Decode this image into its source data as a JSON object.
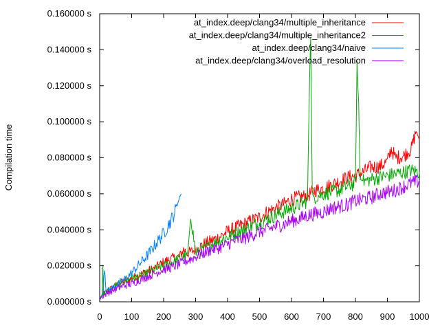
{
  "chart_data": {
    "type": "line",
    "title": "",
    "xlabel": "",
    "ylabel": "Compilation time",
    "xlim": [
      0,
      1000
    ],
    "ylim": [
      0,
      0.16
    ],
    "grid": false,
    "legend_position": "top-right",
    "x_ticks": [
      {
        "value": 0,
        "label": "0"
      },
      {
        "value": 100,
        "label": "100"
      },
      {
        "value": 200,
        "label": "200"
      },
      {
        "value": 300,
        "label": "300"
      },
      {
        "value": 400,
        "label": "400"
      },
      {
        "value": 500,
        "label": "500"
      },
      {
        "value": 600,
        "label": "600"
      },
      {
        "value": 700,
        "label": "700"
      },
      {
        "value": 800,
        "label": "800"
      },
      {
        "value": 900,
        "label": "900"
      },
      {
        "value": 1000,
        "label": "1000"
      }
    ],
    "y_ticks": [
      {
        "value": 0,
        "label": "0.000000 s"
      },
      {
        "value": 0.02,
        "label": "0.020000 s"
      },
      {
        "value": 0.04,
        "label": "0.040000 s"
      },
      {
        "value": 0.06,
        "label": "0.060000 s"
      },
      {
        "value": 0.08,
        "label": "0.080000 s"
      },
      {
        "value": 0.1,
        "label": "0.100000 s"
      },
      {
        "value": 0.12,
        "label": "0.120000 s"
      },
      {
        "value": 0.14,
        "label": "0.140000 s"
      },
      {
        "value": 0.16,
        "label": "0.160000 s"
      }
    ],
    "series": [
      {
        "name": "at_index.deep/clang34/multiple_inheritance",
        "color": "#ff0000",
        "x": [
          0,
          10,
          25,
          50,
          75,
          100,
          125,
          150,
          175,
          200,
          225,
          250,
          262,
          275,
          300,
          325,
          350,
          375,
          400,
          425,
          450,
          475,
          500,
          525,
          550,
          575,
          600,
          625,
          650,
          675,
          700,
          725,
          750,
          775,
          800,
          825,
          850,
          875,
          900,
          912,
          925,
          950,
          975,
          990,
          1000
        ],
        "y": [
          0.002,
          0.004,
          0.006,
          0.009,
          0.011,
          0.013,
          0.015,
          0.017,
          0.019,
          0.022,
          0.024,
          0.025,
          0.029,
          0.027,
          0.029,
          0.032,
          0.034,
          0.036,
          0.039,
          0.041,
          0.043,
          0.045,
          0.047,
          0.05,
          0.052,
          0.054,
          0.057,
          0.058,
          0.059,
          0.062,
          0.063,
          0.065,
          0.067,
          0.069,
          0.07,
          0.072,
          0.075,
          0.075,
          0.078,
          0.085,
          0.08,
          0.081,
          0.085,
          0.095,
          0.09
        ]
      },
      {
        "name": "at_index.deep/clang34/multiple_inheritance2",
        "color": "#00aa00",
        "x": [
          0,
          8,
          10,
          12,
          25,
          50,
          75,
          100,
          125,
          150,
          175,
          200,
          225,
          250,
          275,
          285,
          300,
          325,
          350,
          375,
          400,
          425,
          450,
          475,
          500,
          525,
          550,
          575,
          600,
          625,
          650,
          655,
          660,
          665,
          670,
          700,
          725,
          750,
          775,
          800,
          805,
          810,
          815,
          825,
          850,
          875,
          900,
          925,
          950,
          975,
          1000
        ],
        "y": [
          0.002,
          0.004,
          0.023,
          0.004,
          0.006,
          0.009,
          0.011,
          0.013,
          0.014,
          0.016,
          0.018,
          0.02,
          0.022,
          0.024,
          0.026,
          0.048,
          0.027,
          0.029,
          0.032,
          0.034,
          0.036,
          0.038,
          0.04,
          0.042,
          0.044,
          0.046,
          0.048,
          0.05,
          0.052,
          0.054,
          0.056,
          0.11,
          0.15,
          0.06,
          0.058,
          0.06,
          0.061,
          0.062,
          0.064,
          0.066,
          0.13,
          0.11,
          0.068,
          0.067,
          0.068,
          0.069,
          0.07,
          0.071,
          0.072,
          0.073,
          0.072
        ]
      },
      {
        "name": "at_index.deep/clang34/naive",
        "color": "#0080ff",
        "x": [
          0,
          10,
          15,
          20,
          25,
          50,
          75,
          100,
          125,
          150,
          175,
          200,
          225,
          240,
          250,
          255
        ],
        "y": [
          0.002,
          0.003,
          0.02,
          0.005,
          0.006,
          0.009,
          0.012,
          0.016,
          0.021,
          0.026,
          0.032,
          0.038,
          0.046,
          0.052,
          0.058,
          0.06
        ]
      },
      {
        "name": "at_index.deep/clang34/overload_resolution",
        "color": "#aa00ff",
        "x": [
          0,
          25,
          50,
          75,
          100,
          125,
          150,
          175,
          200,
          225,
          250,
          275,
          300,
          325,
          350,
          375,
          400,
          425,
          450,
          475,
          500,
          525,
          550,
          575,
          600,
          625,
          650,
          675,
          700,
          725,
          750,
          775,
          800,
          825,
          850,
          875,
          900,
          925,
          950,
          975,
          1000
        ],
        "y": [
          0.002,
          0.005,
          0.007,
          0.009,
          0.01,
          0.012,
          0.014,
          0.016,
          0.018,
          0.019,
          0.021,
          0.023,
          0.025,
          0.027,
          0.029,
          0.03,
          0.032,
          0.034,
          0.035,
          0.037,
          0.039,
          0.04,
          0.042,
          0.043,
          0.045,
          0.046,
          0.048,
          0.049,
          0.05,
          0.052,
          0.053,
          0.054,
          0.056,
          0.057,
          0.058,
          0.06,
          0.061,
          0.062,
          0.064,
          0.066,
          0.067
        ]
      }
    ]
  }
}
